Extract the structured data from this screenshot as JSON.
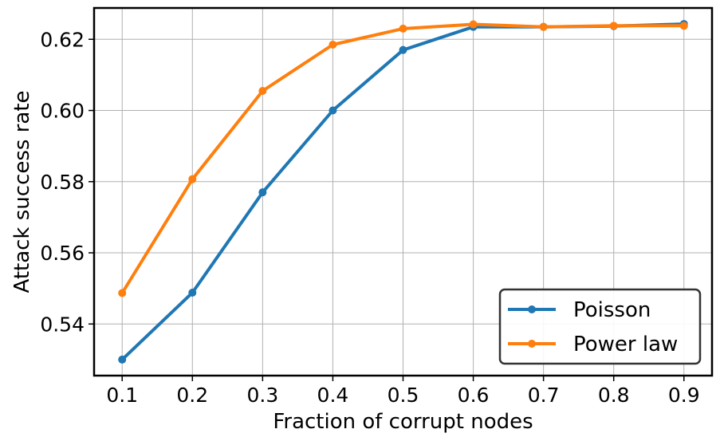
{
  "chart_data": {
    "type": "line",
    "title": "",
    "xlabel": "Fraction of corrupt nodes",
    "ylabel": "Attack success rate",
    "x": [
      0.1,
      0.2,
      0.3,
      0.4,
      0.5,
      0.6,
      0.7,
      0.8,
      0.9
    ],
    "xticks": [
      "0.1",
      "0.2",
      "0.3",
      "0.4",
      "0.5",
      "0.6",
      "0.7",
      "0.8",
      "0.9"
    ],
    "yticks": [
      "0.54",
      "0.56",
      "0.58",
      "0.60",
      "0.62"
    ],
    "ytick_values": [
      0.54,
      0.56,
      0.58,
      0.6,
      0.62
    ],
    "xlim": [
      0.06,
      0.94
    ],
    "ylim": [
      0.5255,
      0.6288
    ],
    "grid": true,
    "legend_position": "bottom-right",
    "series": [
      {
        "name": "Poisson",
        "color": "#1f77b4",
        "values": [
          0.53,
          0.5488,
          0.577,
          0.6,
          0.617,
          0.6235,
          0.6235,
          0.6237,
          0.6243
        ]
      },
      {
        "name": "Power law",
        "color": "#ff7f0e",
        "values": [
          0.5487,
          0.5807,
          0.6055,
          0.6185,
          0.623,
          0.6242,
          0.6235,
          0.6238,
          0.6238
        ]
      }
    ]
  }
}
